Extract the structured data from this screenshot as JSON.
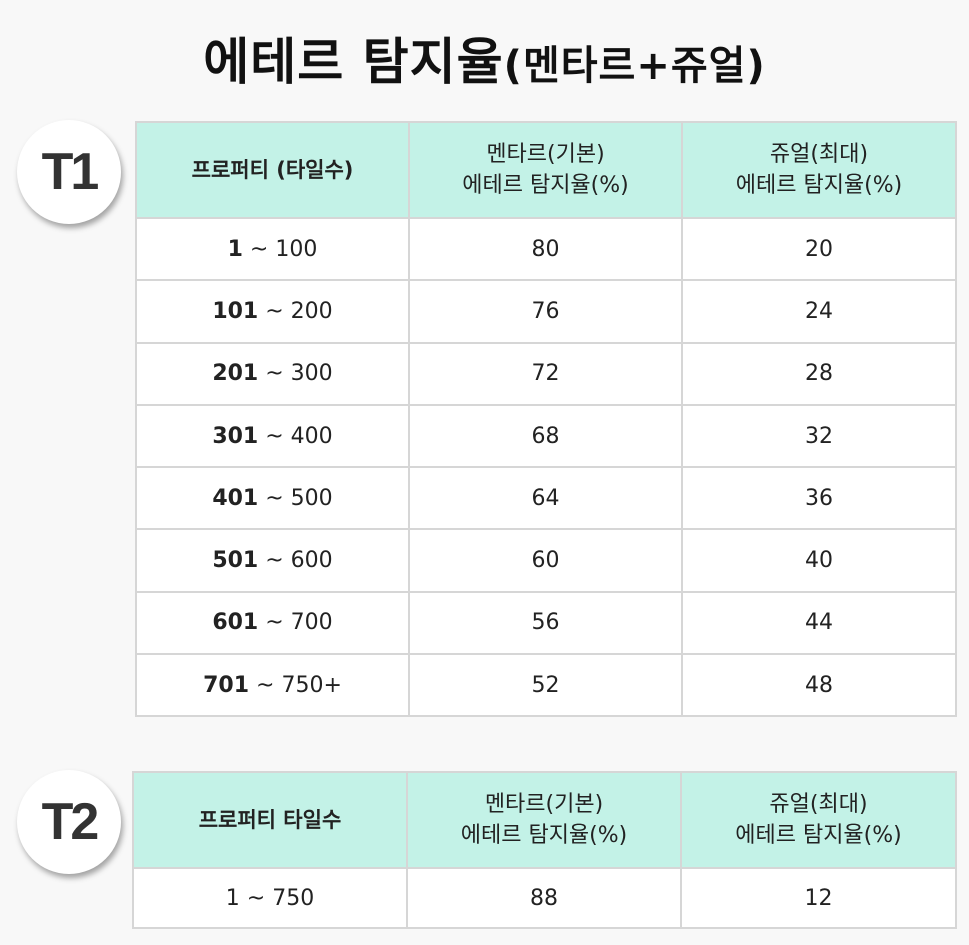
{
  "title": {
    "main": "에테르 탐지율",
    "sub": "(멘타르+쥬얼)"
  },
  "colors": {
    "header_bg": "#c3f2e7",
    "outer_border": "#4a4a4a"
  },
  "t1": {
    "badge": "T1",
    "headers": [
      {
        "l1": "프로퍼티 (타일수)",
        "l2": ""
      },
      {
        "l1": "멘타르(기본)",
        "l2": "에테르 탐지율(%)"
      },
      {
        "l1": "쥬얼(최대)",
        "l2": "에테르 탐지율(%)"
      }
    ],
    "rows": [
      {
        "from": "1",
        "to": " ~ 100",
        "mentar": "80",
        "jewel": "20"
      },
      {
        "from": "101",
        "to": " ~ 200",
        "mentar": "76",
        "jewel": "24"
      },
      {
        "from": "201",
        "to": " ~ 300",
        "mentar": "72",
        "jewel": "28"
      },
      {
        "from": "301",
        "to": " ~ 400",
        "mentar": "68",
        "jewel": "32"
      },
      {
        "from": "401",
        "to": " ~ 500",
        "mentar": "64",
        "jewel": "36"
      },
      {
        "from": "501",
        "to": " ~ 600",
        "mentar": "60",
        "jewel": "40"
      },
      {
        "from": "601",
        "to": " ~ 700",
        "mentar": "56",
        "jewel": "44"
      },
      {
        "from": "701",
        "to": " ~ 750+",
        "mentar": "52",
        "jewel": "48"
      }
    ]
  },
  "t2": {
    "badge": "T2",
    "headers": [
      {
        "l1": "프로퍼티 타일수",
        "l2": ""
      },
      {
        "l1": "멘타르(기본)",
        "l2": "에테르 탐지율(%)"
      },
      {
        "l1": "쥬얼(최대)",
        "l2": "에테르 탐지율(%)"
      }
    ],
    "rows": [
      {
        "range": "1 ~ 750",
        "mentar": "88",
        "jewel": "12"
      }
    ]
  }
}
